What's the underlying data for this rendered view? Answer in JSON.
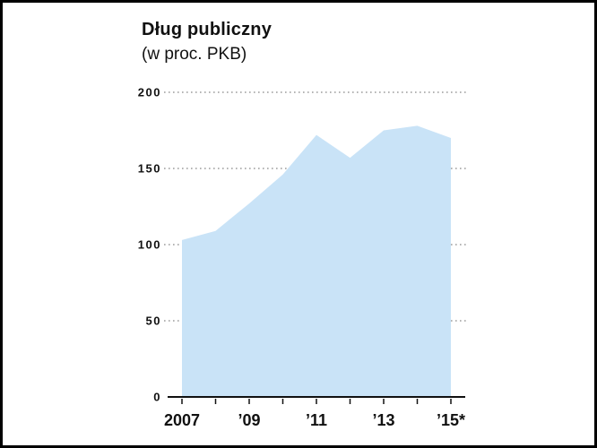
{
  "frame": {
    "background": "#ffffff",
    "border_color": "#000000"
  },
  "header": {
    "title": "Dług publiczny",
    "subtitle": "(w proc. PKB)"
  },
  "chart_data": {
    "type": "area",
    "title": "Dług publiczny",
    "subtitle": "(w proc. PKB)",
    "x": [
      2007,
      2008,
      2009,
      2010,
      2011,
      2012,
      2013,
      2014,
      2015
    ],
    "values": [
      103,
      109,
      127,
      146,
      172,
      157,
      175,
      178,
      170
    ],
    "xlabel": "",
    "ylabel": "proc. PKB",
    "ylim": [
      0,
      200
    ],
    "yticks": [
      0,
      50,
      100,
      150,
      200
    ],
    "xtick_labels": [
      {
        "x": 2007,
        "label": "2007"
      },
      {
        "x": 2009,
        "label": "’09"
      },
      {
        "x": 2011,
        "label": "’11"
      },
      {
        "x": 2013,
        "label": "’13"
      },
      {
        "x": 2015,
        "label": "’15*"
      }
    ],
    "grid": "horizontal dotted",
    "legend": "none",
    "area_color": "#c9e3f7",
    "axis_color": "#111111",
    "gridline_color": "#6b6b6b"
  }
}
